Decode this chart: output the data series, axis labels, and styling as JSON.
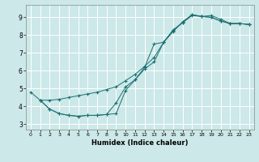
{
  "xlabel": "Humidex (Indice chaleur)",
  "bg_color": "#cce8e8",
  "line_color": "#1a7070",
  "grid_color": "#ffffff",
  "xlim": [
    -0.5,
    23.5
  ],
  "ylim": [
    2.7,
    9.7
  ],
  "xticks": [
    0,
    1,
    2,
    3,
    4,
    5,
    6,
    7,
    8,
    9,
    10,
    11,
    12,
    13,
    14,
    15,
    16,
    17,
    18,
    19,
    20,
    21,
    22,
    23
  ],
  "yticks": [
    3,
    4,
    5,
    6,
    7,
    8,
    9
  ],
  "line1_x": [
    0,
    1,
    2,
    3,
    4,
    5,
    6,
    7,
    8,
    9,
    10,
    11,
    12,
    13,
    14,
    15,
    16,
    17,
    18,
    19,
    20,
    21,
    22,
    23
  ],
  "line1_y": [
    4.8,
    4.35,
    3.85,
    3.6,
    3.5,
    3.45,
    3.5,
    3.5,
    3.55,
    4.2,
    5.1,
    5.5,
    6.1,
    6.5,
    7.6,
    8.25,
    8.7,
    9.1,
    9.05,
    9.1,
    8.9,
    8.65,
    8.65,
    8.6
  ],
  "line2_x": [
    1,
    2,
    3,
    4,
    5,
    6,
    7,
    8,
    9,
    10,
    11,
    12,
    13,
    14,
    15,
    16,
    17,
    18,
    19,
    20,
    21,
    22,
    23
  ],
  "line2_y": [
    4.35,
    3.85,
    3.6,
    3.5,
    3.45,
    3.5,
    3.5,
    3.55,
    3.6,
    4.9,
    5.5,
    6.2,
    7.5,
    7.6,
    8.3,
    8.7,
    9.15,
    9.05,
    9.0,
    8.8,
    8.65,
    8.65,
    8.6
  ],
  "line3_x": [
    1,
    2,
    3,
    4,
    5,
    6,
    7,
    8,
    9,
    10,
    11,
    12,
    13,
    14,
    15,
    16,
    17,
    18,
    19,
    20,
    21,
    22,
    23
  ],
  "line3_y": [
    4.35,
    4.35,
    4.4,
    4.5,
    4.6,
    4.7,
    4.8,
    4.95,
    5.1,
    5.45,
    5.8,
    6.25,
    6.75,
    7.6,
    8.2,
    8.75,
    9.15,
    9.05,
    9.0,
    8.8,
    8.65,
    8.65,
    8.6
  ]
}
